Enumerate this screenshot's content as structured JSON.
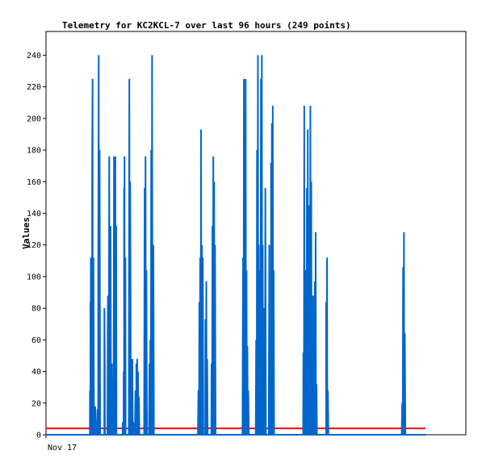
{
  "chart_data": {
    "type": "line",
    "title": "Telemetry for KC2KCL-7 over last 96 hours (249 points)",
    "xlabel": "",
    "ylabel": "Values",
    "x_tick_labels": [
      "Nov 17"
    ],
    "ylim": [
      0,
      255
    ],
    "y_ticks": [
      0,
      20,
      40,
      60,
      80,
      100,
      120,
      140,
      160,
      180,
      200,
      220,
      240
    ],
    "grid": false,
    "legend": "none",
    "x": [
      0.0,
      0.35,
      0.7,
      1.05,
      1.4,
      1.75,
      2.1,
      2.45,
      2.8,
      3.15,
      3.5,
      3.85,
      4.2,
      4.55,
      4.9,
      5.25,
      5.6,
      5.95,
      6.3,
      6.65,
      7.0,
      7.35,
      7.7,
      8.05,
      8.4,
      8.75,
      9.1,
      9.45,
      9.8,
      10.15,
      10.5,
      10.85,
      11.2,
      11.55,
      11.9,
      12.25,
      12.6,
      12.95,
      13.3,
      13.65,
      14.0,
      14.35,
      14.7,
      15.05,
      15.4,
      15.75,
      16.1,
      16.45,
      16.8,
      17.15,
      17.5,
      17.85,
      18.2,
      18.55,
      18.9,
      19.25,
      19.6,
      19.95,
      20.3,
      20.65,
      21.0,
      21.35,
      21.7,
      22.05,
      22.4,
      22.75,
      23.1,
      23.45,
      23.8,
      24.15,
      24.5,
      24.85,
      25.2,
      25.55,
      25.9,
      26.25,
      26.6,
      26.95,
      27.3,
      27.65,
      28.0,
      28.35,
      28.7,
      29.05,
      29.4,
      29.75,
      30.1,
      30.45,
      30.8,
      31.15,
      31.5,
      31.85,
      32.2,
      32.55,
      32.9,
      33.25,
      33.6,
      33.95,
      34.3,
      34.65,
      35.0,
      35.35,
      35.7,
      36.05,
      36.4,
      36.75,
      37.1,
      37.45,
      37.8,
      38.15,
      38.5,
      38.85,
      39.2,
      39.55,
      39.9,
      40.25,
      40.6,
      40.95,
      41.3,
      41.65,
      42.0,
      42.35,
      42.7,
      43.05,
      43.4,
      43.75,
      44.1,
      44.45,
      44.8,
      45.15,
      45.5,
      45.85,
      46.2,
      46.55,
      46.9,
      47.25,
      47.6,
      47.95,
      48.3,
      48.65,
      49.0,
      49.35,
      49.7,
      50.05,
      50.4,
      50.75,
      51.1,
      51.45,
      51.8,
      52.15,
      52.5,
      52.85,
      53.2,
      53.55,
      53.9,
      54.25,
      54.6,
      54.95,
      55.3,
      55.65,
      56.0,
      56.35,
      56.7,
      57.05,
      57.4,
      57.75,
      58.1,
      58.45,
      58.8,
      59.15,
      59.5,
      59.85,
      60.2,
      60.55,
      60.9,
      61.25,
      61.6,
      61.95,
      62.3,
      62.65,
      63.0,
      63.35,
      63.7,
      64.05,
      64.4,
      64.75,
      65.1,
      65.45,
      65.8,
      66.15,
      66.5,
      66.85,
      67.2,
      67.55,
      67.9,
      68.25,
      68.6,
      68.95,
      69.3,
      69.65,
      70.0,
      70.35,
      70.7,
      71.05,
      71.4,
      71.75,
      72.1,
      72.45,
      72.8,
      73.15,
      73.5,
      73.85,
      74.2,
      74.55,
      74.9,
      75.25,
      75.6,
      75.95,
      76.3,
      76.65,
      77.0,
      77.35,
      77.7,
      78.05,
      78.4,
      78.75,
      79.1,
      79.45,
      79.8,
      80.15,
      80.5,
      80.85,
      81.2,
      81.55,
      81.9,
      82.25,
      82.6,
      82.95,
      83.3,
      83.65,
      84.0,
      84.35,
      84.7,
      85.05,
      85.4,
      85.75,
      86.1,
      86.45,
      86.8
    ],
    "series": [
      {
        "color": "#0066cc",
        "values": [
          0,
          0,
          0,
          0,
          0,
          0,
          0,
          0,
          0,
          0,
          0,
          0,
          0,
          0,
          0,
          0,
          0,
          0,
          0,
          0,
          0,
          0,
          0,
          0,
          0,
          0,
          0,
          0,
          0,
          0,
          0,
          0,
          0,
          0,
          0,
          0,
          0,
          0,
          0,
          0,
          0,
          0,
          0,
          0,
          0,
          0,
          0,
          0,
          0,
          0,
          0,
          0,
          0,
          0,
          0,
          0,
          0,
          0,
          0,
          0,
          0,
          0,
          0,
          0,
          0,
          0,
          0,
          0,
          0,
          0,
          0,
          0,
          0,
          0,
          0,
          0,
          0,
          0,
          0,
          0,
          0,
          0,
          0,
          0,
          0,
          0,
          0,
          0,
          0,
          0,
          0,
          0,
          0,
          0,
          0,
          0,
          0,
          0,
          0,
          0,
          0,
          0,
          0,
          0,
          0,
          0,
          0,
          0,
          0,
          0,
          0,
          0,
          0,
          0,
          0,
          0,
          0,
          0,
          0,
          0,
          0,
          0,
          0,
          0,
          0,
          0,
          0,
          0,
          0,
          0,
          0,
          0,
          0,
          0,
          0,
          0,
          0,
          0,
          0,
          0,
          0,
          0,
          0,
          0,
          0,
          0,
          0,
          0,
          0,
          0,
          0,
          0,
          0,
          0,
          0,
          0,
          0,
          0,
          0,
          0,
          0,
          0,
          0,
          0,
          0,
          0,
          0,
          0,
          0,
          0,
          0,
          0,
          0,
          0,
          0,
          0,
          0,
          0,
          0,
          0,
          0,
          0,
          0,
          0,
          0,
          0,
          0,
          0,
          0,
          0,
          0,
          0,
          0,
          0,
          0,
          0,
          0,
          0,
          0,
          0,
          0,
          0,
          0,
          0,
          0,
          0,
          0,
          0,
          0,
          0,
          0,
          0,
          0,
          0,
          0,
          0,
          0,
          0,
          0,
          0,
          0,
          0,
          0,
          0,
          0,
          0,
          0,
          0,
          0,
          0,
          0,
          0,
          0,
          0,
          0,
          0,
          0,
          0,
          0,
          0,
          0,
          0,
          0,
          0,
          0,
          0,
          0,
          0,
          0
        ],
        "spikes": [
          [
            10.05,
            28
          ],
          [
            10.15,
            84
          ],
          [
            10.25,
            112
          ],
          [
            10.55,
            168
          ],
          [
            10.65,
            225
          ],
          [
            10.85,
            112
          ],
          [
            11.25,
            18
          ],
          [
            11.45,
            8
          ],
          [
            11.75,
            16
          ],
          [
            11.95,
            121
          ],
          [
            12.05,
            240
          ],
          [
            12.25,
            180
          ],
          [
            13.35,
            80
          ],
          [
            13.45,
            40
          ],
          [
            14.15,
            88
          ],
          [
            14.45,
            176
          ],
          [
            14.75,
            132
          ],
          [
            15.05,
            45
          ],
          [
            15.55,
            176
          ],
          [
            15.85,
            176
          ],
          [
            16.05,
            132
          ],
          [
            17.55,
            8
          ],
          [
            17.75,
            40
          ],
          [
            17.85,
            156
          ],
          [
            17.95,
            176
          ],
          [
            18.15,
            112
          ],
          [
            19.05,
            225
          ],
          [
            19.25,
            160
          ],
          [
            19.35,
            73
          ],
          [
            19.55,
            48
          ],
          [
            19.75,
            48
          ],
          [
            19.95,
            8
          ],
          [
            20.45,
            28
          ],
          [
            20.65,
            45
          ],
          [
            20.85,
            48
          ],
          [
            21.05,
            40
          ],
          [
            21.25,
            24
          ],
          [
            22.55,
            156
          ],
          [
            22.75,
            176
          ],
          [
            22.95,
            104
          ],
          [
            23.65,
            45
          ],
          [
            23.85,
            60
          ],
          [
            24.05,
            180
          ],
          [
            24.25,
            240
          ],
          [
            24.55,
            120
          ],
          [
            34.85,
            28
          ],
          [
            35.05,
            84
          ],
          [
            35.25,
            112
          ],
          [
            35.45,
            193
          ],
          [
            35.65,
            120
          ],
          [
            35.85,
            112
          ],
          [
            36.45,
            73
          ],
          [
            36.65,
            97
          ],
          [
            36.85,
            48
          ],
          [
            37.85,
            45
          ],
          [
            38.05,
            132
          ],
          [
            38.25,
            176
          ],
          [
            38.45,
            160
          ],
          [
            38.65,
            120
          ],
          [
            45.05,
            112
          ],
          [
            45.25,
            225
          ],
          [
            45.45,
            168
          ],
          [
            45.65,
            225
          ],
          [
            45.85,
            104
          ],
          [
            46.05,
            56
          ],
          [
            46.25,
            28
          ],
          [
            48.05,
            60
          ],
          [
            48.25,
            180
          ],
          [
            48.45,
            240
          ],
          [
            48.65,
            120
          ],
          [
            48.85,
            104
          ],
          [
            49.15,
            225
          ],
          [
            49.35,
            240
          ],
          [
            49.55,
            120
          ],
          [
            49.75,
            80
          ],
          [
            49.95,
            40
          ],
          [
            50.15,
            156
          ],
          [
            51.05,
            120
          ],
          [
            51.45,
            172
          ],
          [
            51.65,
            197
          ],
          [
            51.85,
            208
          ],
          [
            52.05,
            104
          ],
          [
            58.85,
            52
          ],
          [
            59.05,
            208
          ],
          [
            59.25,
            104
          ],
          [
            59.45,
            60
          ],
          [
            59.65,
            156
          ],
          [
            59.85,
            193
          ],
          [
            60.05,
            145
          ],
          [
            60.45,
            208
          ],
          [
            60.65,
            160
          ],
          [
            60.85,
            52
          ],
          [
            61.05,
            88
          ],
          [
            61.25,
            40
          ],
          [
            61.45,
            97
          ],
          [
            61.65,
            128
          ],
          [
            61.85,
            32
          ],
          [
            64.05,
            84
          ],
          [
            64.25,
            112
          ],
          [
            64.45,
            28
          ],
          [
            81.45,
            20
          ],
          [
            81.65,
            106
          ],
          [
            81.85,
            128
          ],
          [
            82.05,
            64
          ]
        ]
      },
      {
        "color": "#ff0000",
        "values": [
          4,
          4,
          4,
          4,
          4,
          4,
          4,
          4,
          4,
          4,
          4,
          4,
          4,
          4,
          4,
          4,
          4,
          4,
          4,
          4,
          4,
          4,
          4,
          4,
          4,
          4,
          4,
          4,
          4,
          4,
          4,
          4,
          4,
          4,
          4,
          4,
          4,
          4,
          4,
          4,
          4,
          4,
          4,
          4,
          4,
          4,
          4,
          4,
          4,
          4,
          4,
          4,
          4,
          4,
          4,
          4,
          4,
          4,
          4,
          4,
          4,
          4,
          4,
          4,
          4,
          4,
          4,
          4,
          4,
          4,
          4,
          4,
          4,
          4,
          4,
          4,
          4,
          4,
          4,
          4,
          4,
          4,
          4,
          4,
          4,
          4,
          4,
          4,
          4,
          4,
          4,
          4,
          4,
          4,
          4,
          4,
          4,
          4,
          4,
          4,
          4,
          4,
          4,
          4,
          4,
          4,
          4,
          4,
          4,
          4,
          4,
          4,
          4,
          4,
          4,
          4,
          4,
          4,
          4,
          4,
          4,
          4,
          4,
          4,
          4,
          4,
          4,
          4,
          4,
          4,
          4,
          4,
          4,
          4,
          4,
          4,
          4,
          4,
          4,
          4,
          4,
          4,
          4,
          4,
          4,
          4,
          4,
          4,
          4,
          4,
          4,
          4,
          4,
          4,
          4,
          4,
          4,
          4,
          4,
          4,
          4,
          4,
          4,
          4,
          4,
          4,
          4,
          4,
          4,
          4,
          4,
          4,
          4,
          4,
          4,
          4,
          4,
          4,
          4,
          4,
          4,
          4,
          4,
          4,
          4,
          4,
          4,
          4,
          4,
          4,
          4,
          4,
          4,
          4,
          4,
          4,
          4,
          4,
          4,
          4,
          4,
          4,
          4,
          4,
          4,
          4,
          4,
          4,
          4,
          4,
          4,
          4,
          4,
          4,
          4,
          4,
          4,
          4,
          4,
          4,
          4,
          4,
          4,
          4,
          4,
          4,
          4,
          4,
          4,
          4,
          4,
          4,
          4,
          4,
          4,
          4,
          4,
          4,
          4,
          4,
          4,
          4,
          4,
          4,
          4,
          4,
          4,
          4,
          4
        ]
      },
      {
        "color": "#000000",
        "values": [
          0,
          0,
          0,
          0,
          0,
          0,
          0,
          0,
          0,
          0,
          0,
          0,
          0,
          0,
          0,
          0,
          0,
          0,
          0,
          0,
          0,
          0,
          0,
          0,
          0,
          0,
          0,
          0,
          0,
          0,
          0,
          0,
          0,
          0,
          0,
          0,
          0,
          0,
          0,
          0,
          0,
          0,
          0,
          0,
          0,
          0,
          0,
          0,
          0,
          0,
          0,
          0,
          0,
          0,
          0,
          0,
          0,
          0,
          0,
          0,
          0,
          0,
          0,
          0,
          0,
          0,
          0,
          0,
          0,
          0,
          0,
          0,
          0,
          0,
          0,
          0,
          0,
          0,
          0,
          0,
          0,
          0,
          0,
          0,
          0,
          0,
          0,
          0,
          0,
          0,
          0,
          0,
          0,
          0,
          0,
          0,
          0,
          0,
          0,
          0,
          0,
          0,
          0,
          0,
          0,
          0,
          0,
          0,
          0,
          0,
          0,
          0,
          0,
          0,
          0,
          0,
          0,
          0,
          0,
          0,
          0,
          0,
          0,
          0,
          0,
          0,
          0,
          0,
          0,
          0,
          0,
          0,
          0,
          0,
          0,
          0,
          0,
          0,
          0,
          0,
          0,
          0,
          0,
          0,
          0,
          0,
          0,
          0,
          0,
          0,
          0,
          0,
          0,
          0,
          0,
          0,
          0,
          0,
          0,
          0,
          0,
          0,
          0,
          0,
          0,
          0,
          0,
          0,
          0,
          0,
          0,
          0,
          0,
          0,
          0,
          0,
          0,
          0,
          0,
          0,
          0,
          0,
          0,
          0,
          0,
          0,
          0,
          0,
          0,
          0,
          0,
          0,
          0,
          0,
          0,
          0,
          0,
          0,
          0,
          0,
          0,
          0,
          0,
          0,
          0,
          0,
          0,
          0,
          0,
          0,
          0,
          0,
          0,
          0,
          0,
          0,
          0,
          0,
          0,
          0,
          0,
          0,
          0,
          0,
          0,
          0,
          0,
          0,
          0,
          0,
          0,
          0,
          0,
          0,
          0,
          0,
          0,
          0,
          0,
          0,
          0,
          0,
          0,
          0,
          0,
          0,
          0,
          0,
          0
        ]
      }
    ]
  }
}
